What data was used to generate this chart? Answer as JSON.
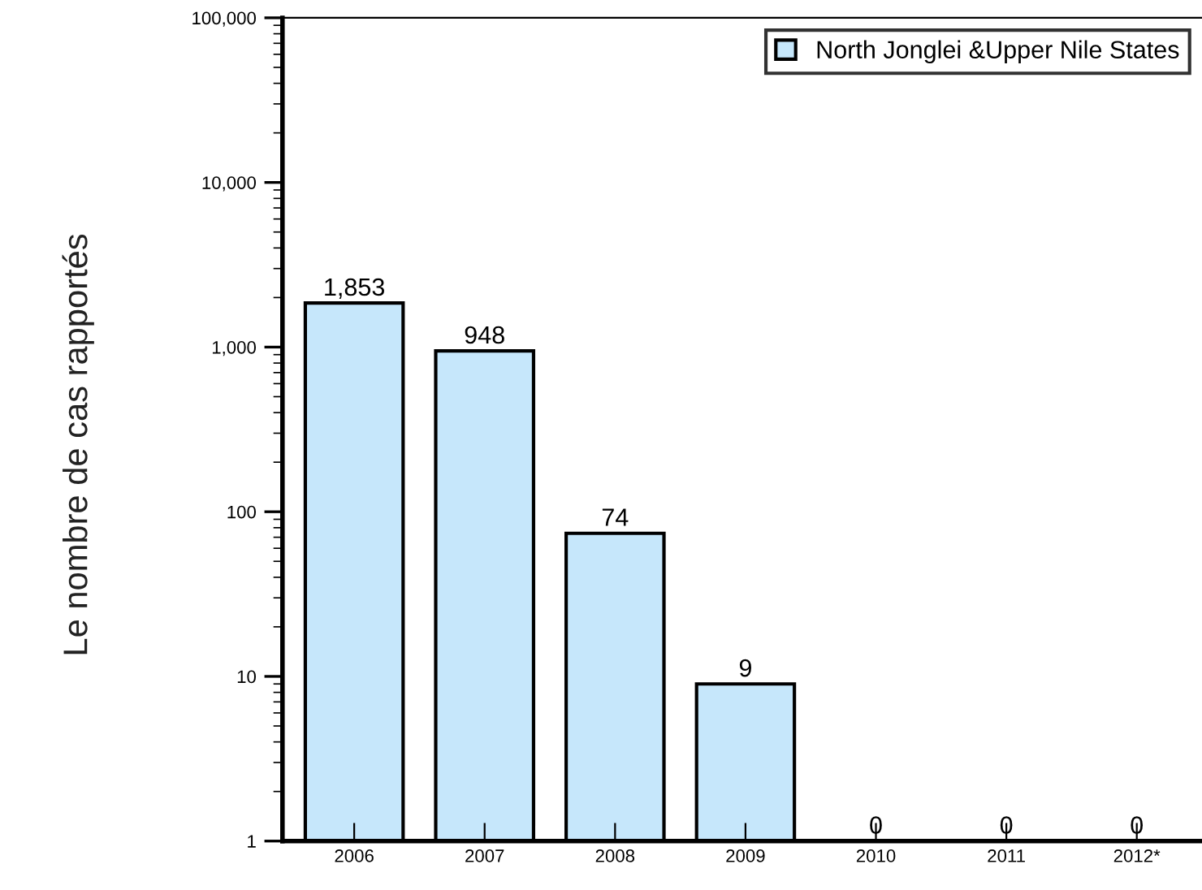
{
  "chart_data": {
    "type": "bar",
    "ylabel": "Le nombre de cas rapportés",
    "categories": [
      "2006",
      "2007",
      "2008",
      "2009",
      "2010",
      "2011",
      "2012*"
    ],
    "series": [
      {
        "name": "North Jonglei &Upper Nile States",
        "color": "#c6e7fb",
        "values": [
          1853,
          948,
          74,
          9,
          null,
          null,
          null
        ],
        "value_labels": [
          "1,853",
          "948",
          "74",
          "9",
          "0",
          "0",
          "0"
        ]
      }
    ],
    "log": "y",
    "ylim": [
      1,
      100000
    ],
    "yticks": [
      {
        "value": 1,
        "label": "1"
      },
      {
        "value": 10,
        "label": "10"
      },
      {
        "value": 100,
        "label": "100"
      },
      {
        "value": 1000,
        "label": "1,000"
      },
      {
        "value": 10000,
        "label": "10,000"
      },
      {
        "value": 100000,
        "label": "100,000"
      }
    ],
    "grid": false,
    "legend": "top right"
  }
}
